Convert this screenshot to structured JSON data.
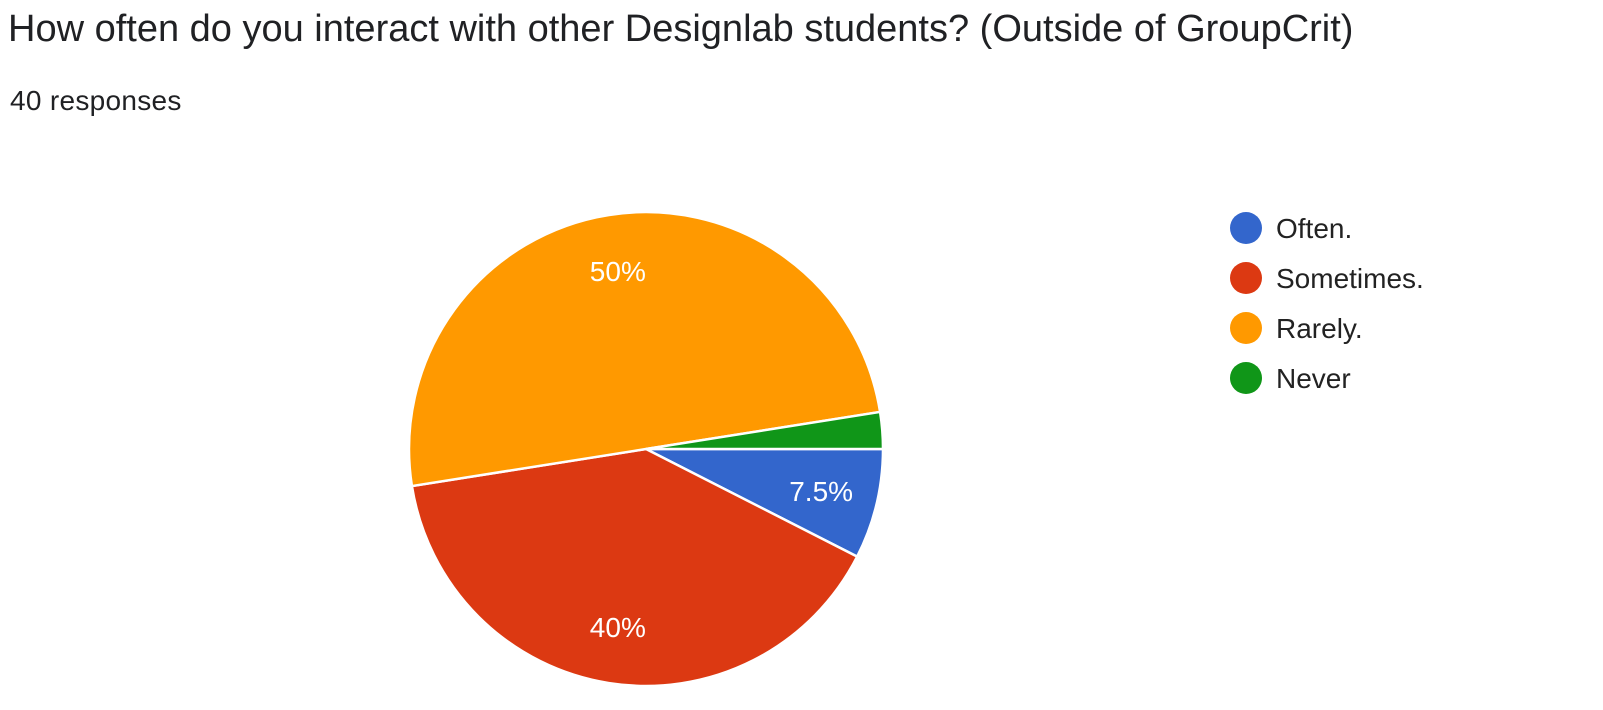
{
  "header": {
    "title": "How often do you interact with other Designlab students? (Outside of GroupCrit)",
    "responses": "40 responses"
  },
  "colors": {
    "often": "#3366cc",
    "sometimes": "#dc3912",
    "rarely": "#ff9900",
    "never": "#109618"
  },
  "chart_data": {
    "type": "pie",
    "title": "How often do you interact with other Designlab students? (Outside of GroupCrit)",
    "total_responses": 40,
    "legend_position": "right",
    "slices": [
      {
        "name": "Often.",
        "count": 3,
        "percent": 7.5,
        "label": "7.5%",
        "color": "#3366cc"
      },
      {
        "name": "Sometimes.",
        "count": 16,
        "percent": 40,
        "label": "40%",
        "color": "#dc3912"
      },
      {
        "name": "Rarely.",
        "count": 20,
        "percent": 50,
        "label": "50%",
        "color": "#ff9900"
      },
      {
        "name": "Never",
        "count": 1,
        "percent": 2.5,
        "label": "",
        "color": "#109618"
      }
    ]
  }
}
